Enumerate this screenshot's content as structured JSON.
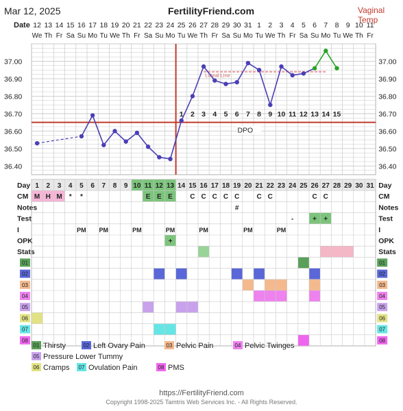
{
  "header": {
    "date": "Mar 12, 2025",
    "site": "FertilityFriend.com",
    "temp_type": "Vaginal Temp"
  },
  "footer": {
    "url": "https://FertilityFriend.com",
    "copyright": "Copyright 1998-2025 Tamtris Web Services Inc. - All Rights Reserved."
  },
  "chart_data": {
    "type": "line",
    "title": "",
    "xlabel": "Date",
    "ylabel": "",
    "ylim": [
      36.35,
      37.1
    ],
    "y_ticks": [
      "37.00",
      "36.90",
      "36.80",
      "36.70",
      "36.60",
      "36.50",
      "36.40"
    ],
    "dates": [
      "12",
      "13",
      "14",
      "15",
      "16",
      "17",
      "18",
      "19",
      "20",
      "21",
      "22",
      "23",
      "24",
      "25",
      "26",
      "27",
      "28",
      "29",
      "30",
      "31",
      "1",
      "2",
      "3",
      "4",
      "5",
      "6",
      "7",
      "8",
      "9",
      "10",
      "11"
    ],
    "weekdays": [
      "We",
      "Th",
      "Fr",
      "Sa",
      "Su",
      "Mo",
      "Tu",
      "We",
      "Th",
      "Fr",
      "Sa",
      "Su",
      "Mo",
      "Tu",
      "We",
      "Th",
      "Fr",
      "Sa",
      "Su",
      "Mo",
      "Tu",
      "We",
      "Th",
      "Fr",
      "Sa",
      "Su",
      "Mo",
      "Tu",
      "We",
      "Th",
      "Fr"
    ],
    "cycle_days": [
      "1",
      "2",
      "3",
      "4",
      "5",
      "6",
      "7",
      "8",
      "9",
      "10",
      "11",
      "12",
      "13",
      "14",
      "15",
      "16",
      "17",
      "18",
      "19",
      "20",
      "21",
      "22",
      "23",
      "24",
      "25",
      "26",
      "27",
      "28",
      "29",
      "30",
      "31"
    ],
    "current_day": 13,
    "temperatures": [
      36.53,
      null,
      null,
      null,
      36.57,
      36.69,
      36.52,
      36.6,
      36.54,
      36.59,
      36.51,
      36.45,
      36.44,
      36.66,
      36.8,
      36.97,
      36.89,
      36.87,
      36.88,
      36.99,
      36.95,
      36.75,
      36.97,
      36.92,
      36.93,
      36.96,
      37.06,
      36.96,
      null,
      null,
      null
    ],
    "interpolated_segment": [
      1,
      5
    ],
    "cover_line": 36.65,
    "cover_line_from_day": 1,
    "fertile_days_highlight": [
      10,
      11,
      12,
      13
    ],
    "ovulation_day": 13,
    "dpo_label": "DPO",
    "dpo_numbers": [
      "1",
      "2",
      "3",
      "4",
      "5",
      "6",
      "7",
      "8",
      "9",
      "10",
      "11",
      "12",
      "13",
      "14",
      "15"
    ],
    "dpo_start_day": 14,
    "luteal_line": {
      "label": "Luteal Line",
      "value": 36.94,
      "from_day": 16,
      "to_day": 27
    },
    "highlight_points_green": [
      26,
      27,
      28
    ],
    "rows": {
      "Day": {
        "label": "Day"
      },
      "CM": {
        "label": "CM",
        "values": {
          "1": "M",
          "2": "H",
          "3": "M",
          "4": "*",
          "5": "*",
          "11": "E",
          "12": "E",
          "13": "E",
          "15": "C",
          "16": "C",
          "17": "C",
          "18": "C",
          "19": "C",
          "21": "C",
          "22": "C",
          "26": "C",
          "27": "C"
        }
      },
      "Notes": {
        "label": "Notes",
        "values": {
          "19": "#"
        }
      },
      "Test": {
        "label": "Test",
        "values": {
          "24": "-",
          "26": "+",
          "27": "+"
        }
      },
      "I": {
        "label": "I",
        "values": {
          "5": "PM",
          "7": "PM",
          "10": "PM",
          "13": "PM",
          "16": "PM",
          "20": "PM",
          "23": "PM"
        }
      },
      "OPK": {
        "label": "OPK",
        "values": {
          "13": "+"
        }
      },
      "Stats": {
        "label": "Stats",
        "values": {
          "16": "green",
          "27": "pink",
          "28": "pink",
          "29": "pink"
        }
      }
    },
    "symptoms": [
      {
        "code": "01",
        "name": "Thirsty",
        "color": "#5aa05a",
        "days": [
          25
        ]
      },
      {
        "code": "02",
        "name": "Left Ovary Pain",
        "color": "#5a67d8",
        "days": [
          12,
          14,
          19,
          21,
          26
        ]
      },
      {
        "code": "03",
        "name": "Pelvic Pain",
        "color": "#f4b98d",
        "days": [
          20,
          22,
          23,
          26
        ]
      },
      {
        "code": "04",
        "name": "Pelvic Twinges",
        "color": "#ee82ee",
        "days": [
          21,
          22,
          23,
          26
        ]
      },
      {
        "code": "05",
        "name": "Pressure Lower Tummy",
        "color": "#c8a2ec",
        "days": [
          11,
          14,
          15
        ]
      },
      {
        "code": "06",
        "name": "Cramps",
        "color": "#e2e285",
        "days": [
          1
        ]
      },
      {
        "code": "07",
        "name": "Ovulation Pain",
        "color": "#66e5e5",
        "days": [
          12,
          13
        ]
      },
      {
        "code": "08",
        "name": "PMS",
        "color": "#ee66ee",
        "days": [
          25
        ]
      }
    ],
    "colors": {
      "line": "#4a3fb5",
      "point": "#4a3fb5",
      "green_line": "#27a427",
      "cover_line": "#c0392b",
      "ovulation_line": "#c0392b",
      "luteal_line": "#e89595",
      "grid": "#c9c9c9",
      "fertile_fill": "#7cc47c",
      "opk_fill": "#7cc47c",
      "cm_fertile_fill": "#7cc47c",
      "cm_menstrual_fill": "#f5b6d6",
      "stats_green": "#9ad39a",
      "stats_pink": "#f5b6c6",
      "day_row_fill": "#e8e8e8"
    }
  }
}
